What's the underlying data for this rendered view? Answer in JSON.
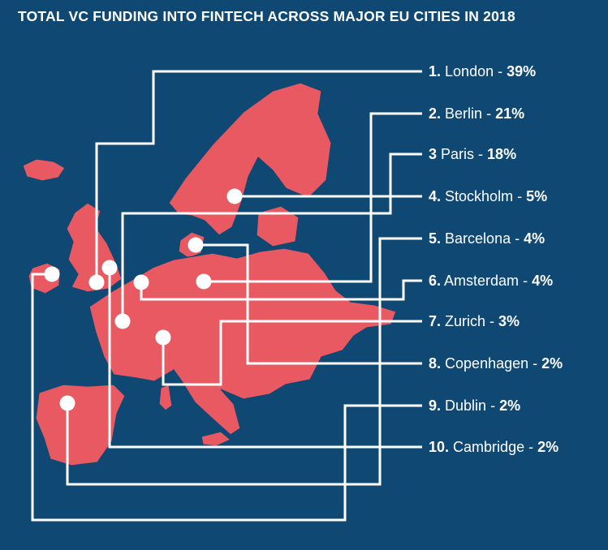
{
  "title": "TOTAL VC FUNDING INTO FINTECH ACROSS MAJOR EU CITIES IN 2018",
  "colors": {
    "background": "#0f4873",
    "land": "#e85962",
    "border": "#0f4873",
    "leader": "#ffffff"
  },
  "cities": [
    {
      "rank": "1.",
      "name": "London",
      "pct": "39%"
    },
    {
      "rank": "2.",
      "name": "Berlin",
      "pct": "21%"
    },
    {
      "rank": "3",
      "name": "Paris",
      "pct": "18%"
    },
    {
      "rank": "4.",
      "name": "Stockholm",
      "pct": "5%"
    },
    {
      "rank": "5.",
      "name": "Barcelona",
      "pct": "4%"
    },
    {
      "rank": "6.",
      "name": "Amsterdam",
      "pct": "4%"
    },
    {
      "rank": "7.",
      "name": "Zurich",
      "pct": "3%"
    },
    {
      "rank": "8.",
      "name": "Copenhagen",
      "pct": "2%"
    },
    {
      "rank": "9.",
      "name": "Dublin",
      "pct": "2%"
    },
    {
      "rank": "10.",
      "name": "Cambridge",
      "pct": "2%"
    }
  ]
}
